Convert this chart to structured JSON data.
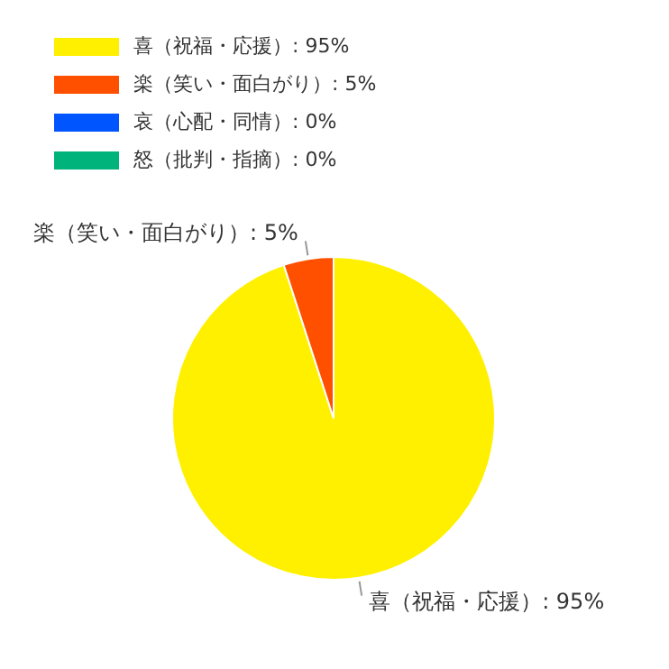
{
  "chart_data": {
    "type": "pie",
    "categories": [
      "喜（祝福・応援）",
      "楽（笑い・面白がり）",
      "哀（心配・同情）",
      "怒（批判・指摘）"
    ],
    "values": [
      95,
      5,
      0,
      0
    ],
    "value_labels": [
      "95%",
      "5%",
      "0%",
      "0%"
    ],
    "colors": [
      "#fff000",
      "#ff5000",
      "#0055ff",
      "#00b37a"
    ],
    "legend": "top left"
  }
}
